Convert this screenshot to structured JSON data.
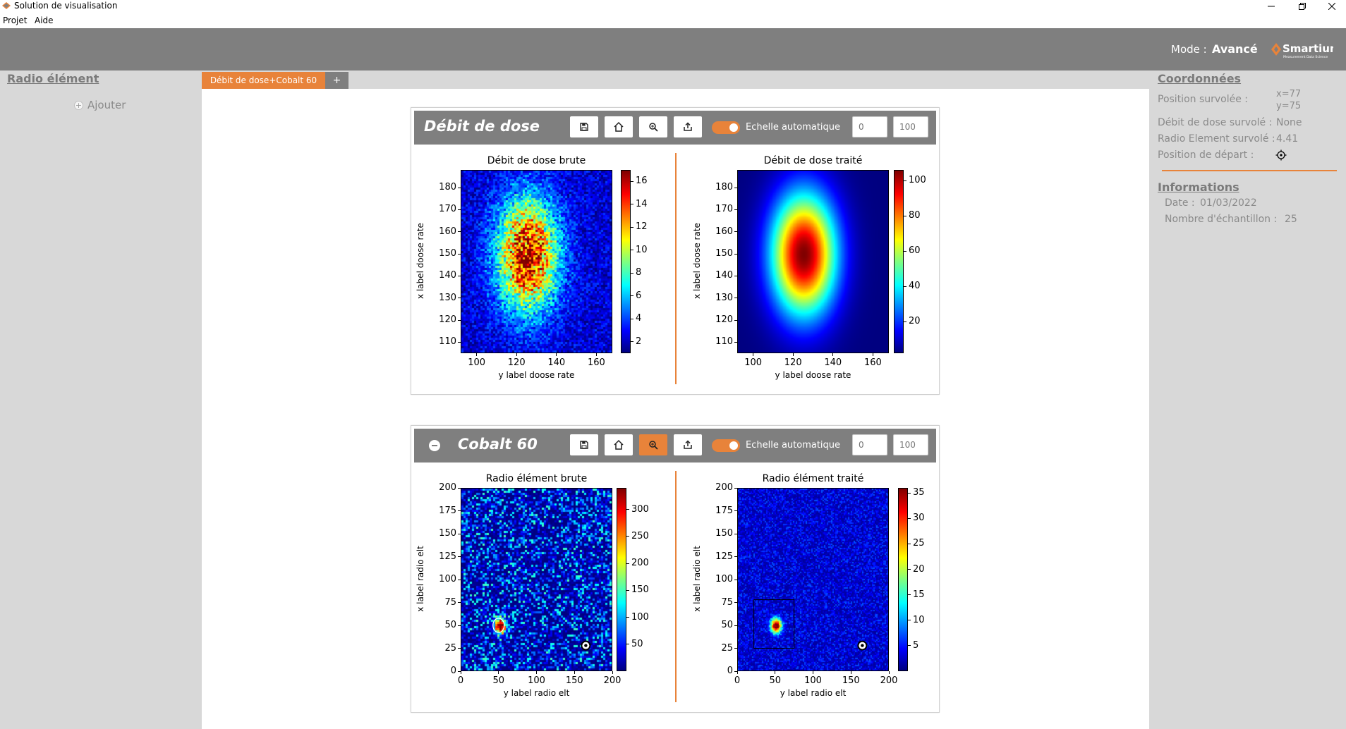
{
  "window": {
    "title": "Solution de visualisation"
  },
  "menu": {
    "items": [
      "Projet",
      "Aide"
    ]
  },
  "header": {
    "mode_label": "Mode :",
    "mode_value": "Avancé",
    "logo_text": "Smartium",
    "logo_tagline": "Measurement Data Science"
  },
  "sidebar": {
    "title": "Radio élément",
    "add_label": "Ajouter"
  },
  "tabs": {
    "active_label": "Débit de dose+Cobalt 60",
    "add_label": "+"
  },
  "panels": [
    {
      "title": "Débit de dose",
      "has_minus": false,
      "zoom_active": false,
      "toggle_label": "Echelle automatique",
      "min_value": "0",
      "max_value": "100",
      "plots": [
        {
          "title": "Débit de dose brute",
          "xlabel": "y label doose rate",
          "ylabel": "x label doose rate",
          "xticks": [
            "100",
            "120",
            "140",
            "160"
          ],
          "yticks": [
            "110",
            "120",
            "130",
            "140",
            "150",
            "160",
            "170",
            "180"
          ],
          "cbar_ticks": [
            "2",
            "4",
            "6",
            "8",
            "10",
            "12",
            "14",
            "16"
          ]
        },
        {
          "title": "Débit de dose traité",
          "xlabel": "y label doose rate",
          "ylabel": "x label doose rate",
          "xticks": [
            "100",
            "120",
            "140",
            "160"
          ],
          "yticks": [
            "110",
            "120",
            "130",
            "140",
            "150",
            "160",
            "170",
            "180"
          ],
          "cbar_ticks": [
            "20",
            "40",
            "60",
            "80",
            "100"
          ]
        }
      ]
    },
    {
      "title": "Cobalt 60",
      "has_minus": true,
      "zoom_active": true,
      "toggle_label": "Echelle automatique",
      "min_value": "0",
      "max_value": "100",
      "plots": [
        {
          "title": "Radio élément brute",
          "xlabel": "y label radio elt",
          "ylabel": "x label radio elt",
          "xticks": [
            "0",
            "50",
            "100",
            "150",
            "200"
          ],
          "yticks": [
            "0",
            "25",
            "50",
            "75",
            "100",
            "125",
            "150",
            "175",
            "200"
          ],
          "cbar_ticks": [
            "50",
            "100",
            "150",
            "200",
            "250",
            "300"
          ]
        },
        {
          "title": "Radio élément traité",
          "xlabel": "y label radio elt",
          "ylabel": "x label radio elt",
          "xticks": [
            "0",
            "50",
            "100",
            "150",
            "200"
          ],
          "yticks": [
            "0",
            "25",
            "50",
            "75",
            "100",
            "125",
            "150",
            "175",
            "200"
          ],
          "cbar_ticks": [
            "5",
            "10",
            "15",
            "20",
            "25",
            "30",
            "35"
          ]
        }
      ]
    }
  ],
  "coordinates": {
    "title": "Coordonnées",
    "position_label": "Position survolée :",
    "position_x": "x=77",
    "position_y": "y=75",
    "dose_label": "Débit de dose survolé :",
    "dose_value": "None",
    "radio_label": "Radio Element survolé :",
    "radio_value": "4.41",
    "start_label": "Position de départ :"
  },
  "informations": {
    "title": "Informations",
    "date_label": "Date :",
    "date_value": "01/03/2022",
    "samples_label": "Nombre d'échantillon :",
    "samples_value": "25"
  },
  "chart_data": [
    {
      "type": "heatmap",
      "title": "Débit de dose brute",
      "xlabel": "y label doose rate",
      "ylabel": "x label doose rate",
      "xlim": [
        92,
        168
      ],
      "ylim": [
        105,
        188
      ],
      "colorbar_range": [
        1,
        17
      ],
      "colormap": "jet",
      "peak": {
        "x": 125,
        "y": 150,
        "value": 17
      },
      "noisy": true
    },
    {
      "type": "heatmap",
      "title": "Débit de dose traité",
      "xlabel": "y label doose rate",
      "ylabel": "x label doose rate",
      "xlim": [
        92,
        168
      ],
      "ylim": [
        105,
        188
      ],
      "colorbar_range": [
        2,
        106
      ],
      "colormap": "jet",
      "peak": {
        "x": 125,
        "y": 150,
        "value": 106
      },
      "noisy": false
    },
    {
      "type": "heatmap",
      "title": "Radio élément brute",
      "xlabel": "y label radio elt",
      "ylabel": "x label radio elt",
      "xlim": [
        0,
        200
      ],
      "ylim": [
        0,
        200
      ],
      "colorbar_range": [
        0,
        340
      ],
      "colormap": "jet",
      "hotspot": {
        "x": 50,
        "y": 50
      },
      "start_marker": {
        "x": 165,
        "y": 28
      },
      "noisy": true
    },
    {
      "type": "heatmap",
      "title": "Radio élément traité",
      "xlabel": "y label radio elt",
      "ylabel": "x label radio elt",
      "xlim": [
        0,
        200
      ],
      "ylim": [
        0,
        200
      ],
      "colorbar_range": [
        0,
        36
      ],
      "colormap": "jet",
      "hotspot": {
        "x": 50,
        "y": 50
      },
      "selection_box": {
        "x0": 22,
        "y0": 25,
        "x1": 75,
        "y1": 78
      },
      "start_marker": {
        "x": 165,
        "y": 28
      },
      "noisy": false
    }
  ]
}
